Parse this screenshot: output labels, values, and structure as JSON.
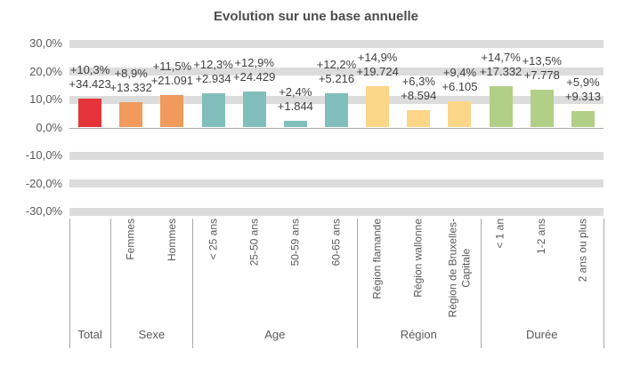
{
  "chart_data": {
    "type": "bar",
    "title": "Evolution sur une base annuelle",
    "xlabel": "",
    "ylabel": "",
    "ylim": [
      -30,
      30
    ],
    "grid": "horizontal-bands",
    "legend": "none",
    "y_ticks": [
      "30,0%",
      "20,0%",
      "10,0%",
      "0,0%",
      "-10,0%",
      "-20,0%",
      "-30,0%"
    ],
    "y_tick_values": [
      30,
      20,
      10,
      0,
      -10,
      -20,
      -30
    ],
    "colors": {
      "band": "#dcdcdc",
      "axis_line": "#a6a6a6",
      "separator": "#a9a9a9",
      "title_text": "#4d4d4d",
      "axis_text": "#595959",
      "value_text": "#404040"
    },
    "groups": [
      {
        "label": "Total",
        "color": "#e4343a",
        "bars": [
          {
            "category": "Total",
            "cat_label_lines": [],
            "value_pct": 10.3,
            "pct_label": "+10,3%",
            "abs_label": "+34.423"
          }
        ]
      },
      {
        "label": "Sexe",
        "color": "#f09a5c",
        "bars": [
          {
            "category": "Femmes",
            "cat_label_lines": [
              "Femmes"
            ],
            "value_pct": 8.9,
            "pct_label": "+8,9%",
            "abs_label": "+13.332"
          },
          {
            "category": "Hommes",
            "cat_label_lines": [
              "Hommes"
            ],
            "value_pct": 11.5,
            "pct_label": "+11,5%",
            "abs_label": "+21.091"
          }
        ]
      },
      {
        "label": "Age",
        "color": "#82bebb",
        "bars": [
          {
            "category": "< 25 ans",
            "cat_label_lines": [
              "< 25 ans"
            ],
            "value_pct": 12.3,
            "pct_label": "+12,3%",
            "abs_label": "+2.934"
          },
          {
            "category": "25-50 ans",
            "cat_label_lines": [
              "25-50 ans"
            ],
            "value_pct": 12.9,
            "pct_label": "+12,9%",
            "abs_label": "+24.429"
          },
          {
            "category": "50-59 ans",
            "cat_label_lines": [
              "50-59 ans"
            ],
            "value_pct": 2.4,
            "pct_label": "+2,4%",
            "abs_label": "+1.844"
          },
          {
            "category": "60-65 ans",
            "cat_label_lines": [
              "60-65 ans"
            ],
            "value_pct": 12.2,
            "pct_label": "+12,2%",
            "abs_label": "+5.216"
          }
        ]
      },
      {
        "label": "Région",
        "color": "#fcd688",
        "bars": [
          {
            "category": "Région flamande",
            "cat_label_lines": [
              "Région flamande"
            ],
            "value_pct": 14.9,
            "pct_label": "+14,9%",
            "abs_label": "+19.724"
          },
          {
            "category": "Région wallonne",
            "cat_label_lines": [
              "Région wallonne"
            ],
            "value_pct": 6.3,
            "pct_label": "+6,3%",
            "abs_label": "+8.594"
          },
          {
            "category": "Région de Bruxelles-Capitale",
            "cat_label_lines": [
              "Région de Bruxelles-",
              "Capitale"
            ],
            "value_pct": 9.4,
            "pct_label": "+9,4%",
            "abs_label": "+6.105"
          }
        ]
      },
      {
        "label": "Durée",
        "color": "#b2cf87",
        "bars": [
          {
            "category": "< 1 an",
            "cat_label_lines": [
              "< 1 an"
            ],
            "value_pct": 14.7,
            "pct_label": "+14,7%",
            "abs_label": "+17.332"
          },
          {
            "category": "1-2 ans",
            "cat_label_lines": [
              "1-2 ans"
            ],
            "value_pct": 13.5,
            "pct_label": "+13,5%",
            "abs_label": "+7.778"
          },
          {
            "category": "2 ans ou plus",
            "cat_label_lines": [
              "2 ans ou plus"
            ],
            "value_pct": 5.9,
            "pct_label": "+5,9%",
            "abs_label": "+9.313"
          }
        ]
      }
    ]
  }
}
